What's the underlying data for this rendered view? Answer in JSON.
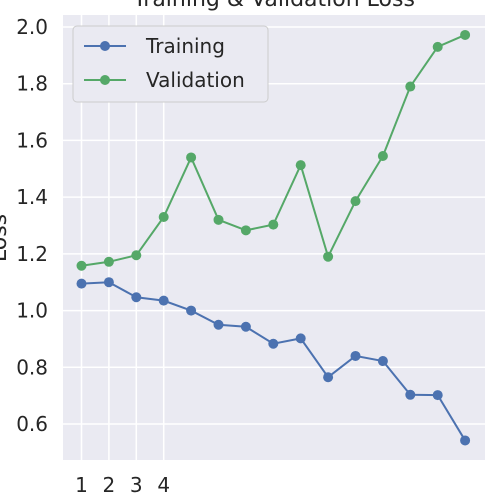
{
  "chart_data": {
    "type": "line",
    "title": "Training & Validation Loss",
    "xlabel": "",
    "ylabel": "Loss",
    "x": [
      1,
      2,
      3,
      4,
      5,
      6,
      7,
      8,
      9,
      10,
      11,
      12,
      13,
      14,
      15
    ],
    "xtick_labels": [
      "1",
      "2",
      "3",
      "4"
    ],
    "ytick_labels": [
      "0.6",
      "0.8",
      "1.0",
      "1.2",
      "1.4",
      "1.6",
      "1.8",
      "2.0"
    ],
    "ylim": [
      0.47,
      2.04
    ],
    "grid": true,
    "legend": "top-left",
    "series": [
      {
        "name": "Training",
        "color": "#4c72b0",
        "values": [
          1.095,
          1.1,
          1.047,
          1.035,
          1.0,
          0.95,
          0.943,
          0.883,
          0.902,
          0.765,
          0.84,
          0.822,
          0.703,
          0.702,
          0.542
        ]
      },
      {
        "name": "Validation",
        "color": "#55a868",
        "values": [
          1.158,
          1.172,
          1.195,
          1.33,
          1.54,
          1.32,
          1.283,
          1.303,
          1.513,
          1.19,
          1.386,
          1.545,
          1.79,
          1.93,
          1.972
        ]
      }
    ]
  }
}
